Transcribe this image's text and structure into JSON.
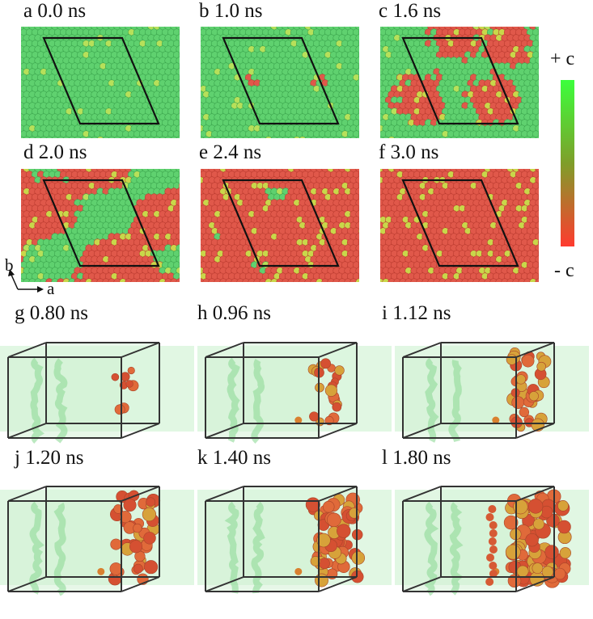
{
  "top_panels": [
    {
      "id": "a",
      "label": "a 0.0 ns",
      "red_frac": 0.0
    },
    {
      "id": "b",
      "label": "b 1.0 ns",
      "red_frac": 0.02
    },
    {
      "id": "c",
      "label": "c 1.6 ns",
      "red_frac": 0.22
    },
    {
      "id": "d",
      "label": "d 2.0 ns",
      "red_frac": 0.55
    },
    {
      "id": "e",
      "label": "e 2.4 ns",
      "red_frac": 0.88
    },
    {
      "id": "f",
      "label": "f 3.0 ns",
      "red_frac": 1.0
    }
  ],
  "bottom_panels": [
    {
      "id": "g",
      "label": "g 0.80 ns",
      "growth": 0.05
    },
    {
      "id": "h",
      "label": "h 0.96 ns",
      "growth": 0.25
    },
    {
      "id": "i",
      "label": "i 1.12 ns",
      "growth": 0.45
    },
    {
      "id": "j",
      "label": "j 1.20 ns",
      "growth": 0.55
    },
    {
      "id": "k",
      "label": "k 1.40 ns",
      "growth": 0.75
    },
    {
      "id": "l",
      "label": "l 1.80 ns",
      "growth": 1.0
    }
  ],
  "colorbar": {
    "top_label": "+ c",
    "bottom_label": "- c",
    "top_color": "#3cff3c",
    "bottom_color": "#ff3b2f"
  },
  "axes": {
    "a_label": "a",
    "b_label": "b"
  },
  "colors": {
    "green": "#5fd16f",
    "green_dark": "#3aa34c",
    "red": "#e0584a",
    "red_dark": "#b83a2e",
    "frame": "#111111",
    "box_fill": "#c8f0cc"
  }
}
